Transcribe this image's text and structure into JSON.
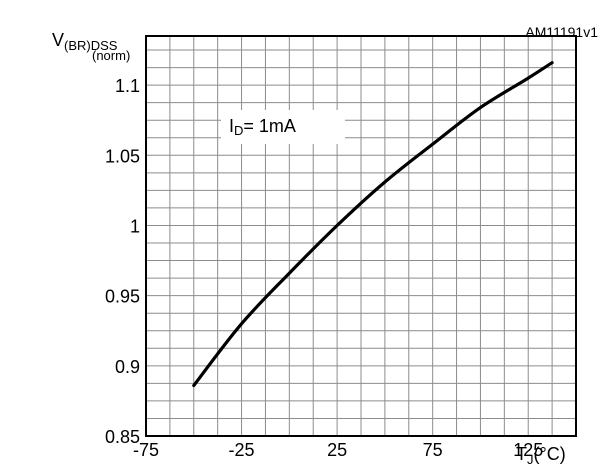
{
  "figure_id": "AM11191v1",
  "chart_data": {
    "type": "line",
    "ylabel": {
      "main": "V",
      "sub": "(BR)DSS",
      "second_line": "(norm)"
    },
    "xlabel": {
      "main": "T",
      "sub": "J",
      "unit": "(°C)"
    },
    "annotation": {
      "main": "I",
      "sub": "D",
      "rest": "= 1mA"
    },
    "xlim": [
      -75,
      150
    ],
    "ylim": [
      0.85,
      1.135
    ],
    "x_ticks": [
      {
        "value": -75,
        "label": "-75"
      },
      {
        "value": -25,
        "label": "-25"
      },
      {
        "value": 25,
        "label": "25"
      },
      {
        "value": 75,
        "label": "75"
      },
      {
        "value": 125,
        "label": "125"
      }
    ],
    "y_ticks": [
      {
        "value": 0.85,
        "label": "0.85"
      },
      {
        "value": 0.9,
        "label": "0.9"
      },
      {
        "value": 0.95,
        "label": "0.95"
      },
      {
        "value": 1,
        "label": "1"
      },
      {
        "value": 1.05,
        "label": "1.05"
      },
      {
        "value": 1.1,
        "label": "1.1"
      }
    ],
    "grid": true,
    "x_grid_step": 12.5,
    "y_grid_step": 0.0125,
    "series": [
      {
        "color": "#000000",
        "x": [
          -50,
          -25,
          0,
          25,
          50,
          75,
          100,
          125,
          137.5
        ],
        "y": [
          0.886,
          0.93,
          0.966,
          1.0,
          1.031,
          1.058,
          1.084,
          1.105,
          1.116
        ]
      }
    ]
  }
}
